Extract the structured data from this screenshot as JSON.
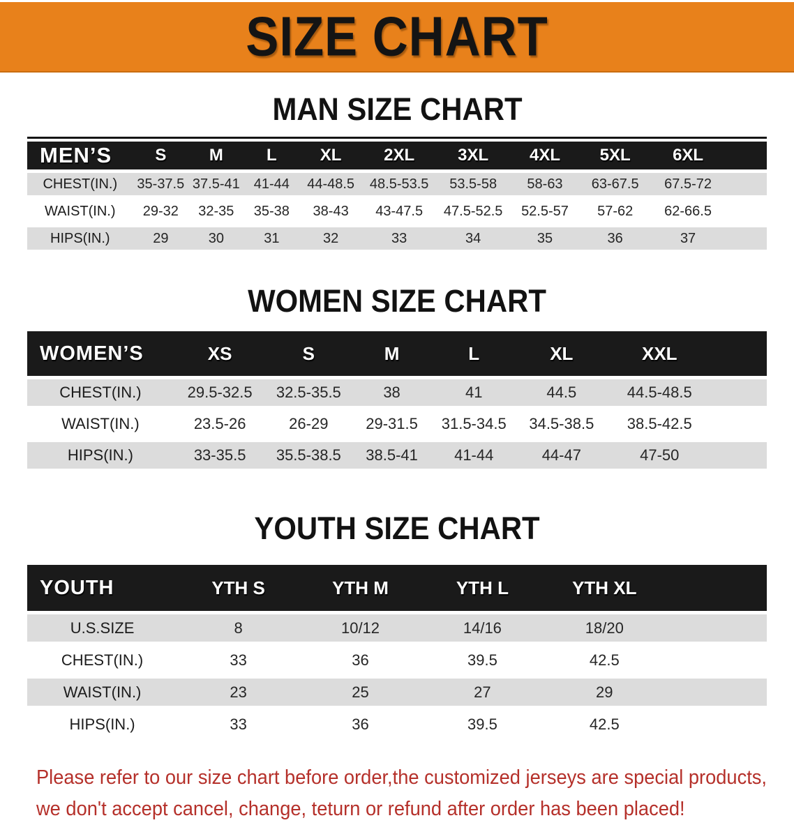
{
  "banner": {
    "title": "SIZE CHART",
    "bg_color": "#e8811b",
    "text_color": "#141414"
  },
  "sections": [
    {
      "heading": "MAN SIZE CHART",
      "table": {
        "label": "MEN’S",
        "columns": [
          "S",
          "M",
          "L",
          "XL",
          "2XL",
          "3XL",
          "4XL",
          "5XL",
          "6XL"
        ],
        "rows": [
          {
            "label": "CHEST(IN.)",
            "values": [
              "35-37.5",
              "37.5-41",
              "41-44",
              "44-48.5",
              "48.5-53.5",
              "53.5-58",
              "58-63",
              "63-67.5",
              "67.5-72"
            ]
          },
          {
            "label": "WAIST(IN.)",
            "values": [
              "29-32",
              "32-35",
              "35-38",
              "38-43",
              "43-47.5",
              "47.5-52.5",
              "52.5-57",
              "57-62",
              "62-66.5"
            ]
          },
          {
            "label": "HIPS(IN.)",
            "values": [
              "29",
              "30",
              "31",
              "32",
              "33",
              "34",
              "35",
              "36",
              "37"
            ]
          }
        ]
      }
    },
    {
      "heading": "WOMEN SIZE CHART",
      "table": {
        "label": "WOMEN’S",
        "columns": [
          "XS",
          "S",
          "M",
          "L",
          "XL",
          "XXL"
        ],
        "rows": [
          {
            "label": "CHEST(IN.)",
            "values": [
              "29.5-32.5",
              "32.5-35.5",
              "38",
              "41",
              "44.5",
              "44.5-48.5"
            ]
          },
          {
            "label": "WAIST(IN.)",
            "values": [
              "23.5-26",
              "26-29",
              "29-31.5",
              "31.5-34.5",
              "34.5-38.5",
              "38.5-42.5"
            ]
          },
          {
            "label": "HIPS(IN.)",
            "values": [
              "33-35.5",
              "35.5-38.5",
              "38.5-41",
              "41-44",
              "44-47",
              "47-50"
            ]
          }
        ]
      }
    },
    {
      "heading": "YOUTH SIZE CHART",
      "table": {
        "label": "YOUTH",
        "columns": [
          "YTH S",
          "YTH M",
          "YTH L",
          "YTH XL"
        ],
        "rows": [
          {
            "label": "U.S.SIZE",
            "values": [
              "8",
              "10/12",
              "14/16",
              "18/20"
            ]
          },
          {
            "label": "CHEST(IN.)",
            "values": [
              "33",
              "36",
              "39.5",
              "42.5"
            ]
          },
          {
            "label": "WAIST(IN.)",
            "values": [
              "23",
              "25",
              "27",
              "29"
            ]
          },
          {
            "label": "HIPS(IN.)",
            "values": [
              "33",
              "36",
              "39.5",
              "42.5"
            ]
          }
        ]
      }
    }
  ],
  "footer": {
    "line1": "Please refer to our size chart before order,the customized jerseys are special products,",
    "line2": "we don't accept cancel, change, teturn or refund after order has been placed!",
    "text_color": "#b5302a"
  }
}
